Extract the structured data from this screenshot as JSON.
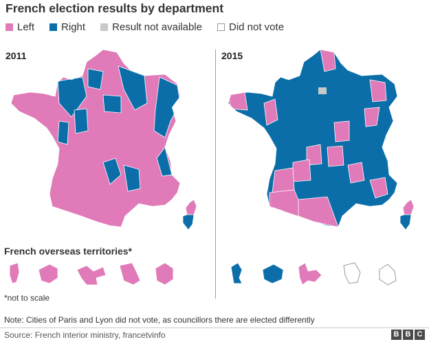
{
  "title": "French election results by department",
  "legend": [
    {
      "label": "Left",
      "color": "#e07ab8"
    },
    {
      "label": "Right",
      "color": "#0b6ea9"
    },
    {
      "label": "Result not available",
      "color": "#c8c8c8"
    },
    {
      "label": "Did not vote",
      "color": "#ffffff"
    }
  ],
  "colors": {
    "left": "#e07ab8",
    "right": "#0b6ea9",
    "na": "#c8c8c8",
    "none": "#ffffff",
    "border": "#ffffff",
    "outline": "#999999"
  },
  "panels": [
    {
      "year": "2011",
      "majority": "left",
      "minority": "right",
      "corsica": [
        "left",
        "right"
      ]
    },
    {
      "year": "2015",
      "majority": "right",
      "minority": "left",
      "corsica": [
        "left",
        "right"
      ]
    }
  ],
  "overseas": {
    "title": "French overseas territories*",
    "note": "*not to scale",
    "results_2011": [
      "left",
      "left",
      "left",
      "left",
      "left"
    ],
    "results_2015": [
      "right",
      "right",
      "left",
      "none",
      "none"
    ]
  },
  "note": "Note: Cities of Paris and Lyon did not vote, as councillors there are elected differently",
  "source": "Source: French interior ministry, francetvinfo",
  "brand": [
    "B",
    "B",
    "C"
  ]
}
